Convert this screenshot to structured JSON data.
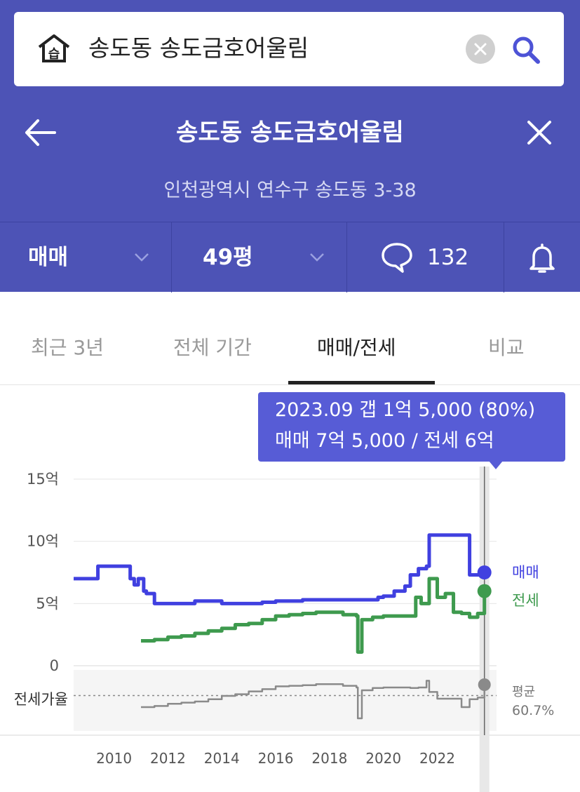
{
  "search": {
    "query": "송도동 송도금호어울림"
  },
  "header": {
    "title": "송도동 송도금호어울림",
    "address": "인천광역시 연수구 송도동 3-38"
  },
  "toolbar": {
    "deal_type": "매매",
    "area": "49평",
    "comment_count": "132"
  },
  "tabs": [
    {
      "label": "최근 3년",
      "active": false
    },
    {
      "label": "전체 기간",
      "active": false
    },
    {
      "label": "매매/전세",
      "active": true
    },
    {
      "label": "비교",
      "active": false
    }
  ],
  "tooltip": {
    "line1": "2023.09  갭 1억 5,000 (80%)",
    "line2": "매매 7억 5,000 / 전세 6억"
  },
  "colors": {
    "header_bg": "#4d53b6",
    "sale": "#4040e0",
    "jeonse": "#3e9a4e",
    "ratio": "#8a8a8a",
    "tooltip_bg": "#575cd6"
  },
  "chart_data": {
    "type": "line",
    "y_ticks": [
      "15억",
      "10억",
      "5억",
      "0"
    ],
    "ylim": [
      0,
      15
    ],
    "xlim": [
      2008.5,
      2024.2
    ],
    "x_ticks": [
      "2010",
      "2012",
      "2014",
      "2016",
      "2018",
      "2020",
      "2022"
    ],
    "grid": true,
    "series": [
      {
        "name": "매매",
        "unit": "억",
        "x": [
          2008.5,
          2009.3,
          2009.4,
          2010.5,
          2010.6,
          2010.75,
          2010.9,
          2011.1,
          2011.2,
          2011.5,
          2012,
          2012.5,
          2013,
          2013.5,
          2014,
          2014.5,
          2015,
          2015.5,
          2016,
          2016.5,
          2017,
          2017.5,
          2018,
          2018.5,
          2019,
          2019.5,
          2019.8,
          2020,
          2020.4,
          2020.8,
          2021,
          2021.3,
          2021.6,
          2021.7,
          2022,
          2022.5,
          2022.7,
          2022.9,
          2023.2,
          2023.5,
          2023.75
        ],
        "values": [
          7.0,
          7.0,
          8.0,
          8.0,
          7.0,
          6.5,
          7.0,
          6.0,
          5.8,
          5.0,
          5.0,
          5.0,
          5.2,
          5.2,
          5.0,
          5.0,
          5.0,
          5.1,
          5.2,
          5.2,
          5.3,
          5.3,
          5.3,
          5.3,
          5.3,
          5.3,
          5.5,
          5.6,
          6.0,
          6.4,
          7.3,
          7.8,
          8.0,
          10.5,
          10.5,
          10.5,
          10.5,
          10.5,
          7.3,
          7.3,
          7.5
        ]
      },
      {
        "name": "전세",
        "unit": "억",
        "x": [
          2011,
          2011.5,
          2012,
          2012.5,
          2013,
          2013.5,
          2014,
          2014.5,
          2015,
          2015.5,
          2016,
          2016.5,
          2017,
          2017.5,
          2018,
          2018.5,
          2019,
          2019.05,
          2019.2,
          2019.6,
          2020,
          2020.5,
          2021,
          2021.2,
          2021.4,
          2021.7,
          2022,
          2022.3,
          2022.6,
          2022.9,
          2023.2,
          2023.5,
          2023.75
        ],
        "values": [
          2.0,
          2.1,
          2.3,
          2.4,
          2.6,
          2.8,
          3.0,
          3.3,
          3.4,
          3.7,
          4.0,
          4.1,
          4.2,
          4.3,
          4.3,
          4.1,
          4.0,
          1.1,
          3.7,
          3.9,
          4.0,
          4.0,
          4.0,
          5.5,
          5.0,
          7.0,
          5.5,
          5.8,
          4.3,
          4.2,
          3.9,
          4.2,
          6.0
        ]
      },
      {
        "name": "전세가율",
        "unit": "%",
        "x": [
          2011,
          2011.5,
          2012,
          2012.5,
          2013,
          2013.5,
          2014,
          2014.5,
          2015,
          2015.5,
          2016,
          2016.5,
          2017,
          2017.5,
          2018,
          2018.5,
          2019,
          2019.05,
          2019.2,
          2019.6,
          2020,
          2020.5,
          2021,
          2021.3,
          2021.6,
          2021.7,
          2022,
          2022.5,
          2022.9,
          2023.2,
          2023.5,
          2023.75
        ],
        "values": [
          40,
          42,
          46,
          48,
          50,
          54,
          60,
          63,
          68,
          72,
          77,
          78,
          79,
          81,
          81,
          78,
          75,
          20,
          70,
          74,
          75,
          75,
          74,
          75,
          87,
          67,
          55,
          55,
          40,
          54,
          57,
          80
        ]
      }
    ],
    "ratio_panel": {
      "label": "전세가율",
      "average_label": "평균",
      "average_value": "60.7%",
      "average": 60.7
    },
    "highlight": {
      "x": 2023.75,
      "label": "2023.09"
    }
  }
}
